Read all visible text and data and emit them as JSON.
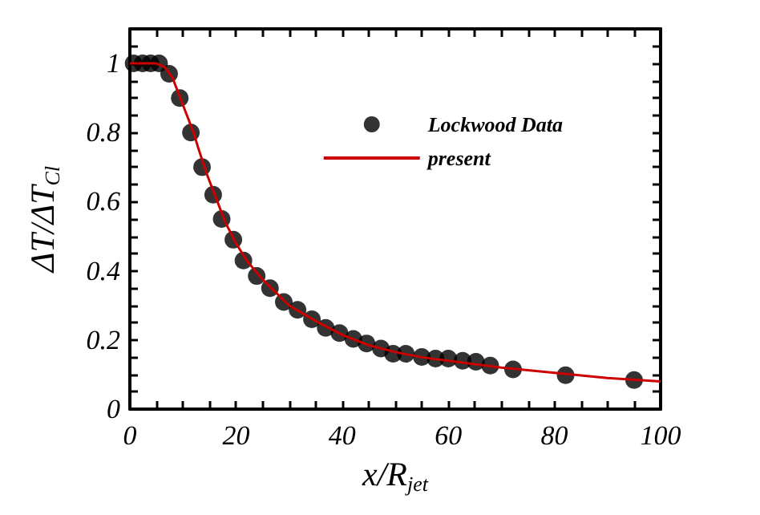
{
  "chart_data": {
    "type": "scatter",
    "xlabel": "x/R$_{jet}$",
    "ylabel": "ΔT/ΔT$_{Cl}$",
    "xlim": [
      0,
      100
    ],
    "xticks": [
      0,
      {
        "value": 5,
        "label": null
      },
      {
        "value": 10,
        "label": null
      },
      {
        "value": 15,
        "label": null
      },
      20,
      {
        "value": 25,
        "label": null
      },
      {
        "value": 30,
        "label": null
      },
      {
        "value": 35,
        "label": null
      },
      40,
      {
        "value": 45,
        "label": null
      },
      {
        "value": 50,
        "label": null
      },
      {
        "value": 55,
        "label": null
      },
      60,
      {
        "value": 65,
        "label": null
      },
      {
        "value": 70,
        "label": null
      },
      {
        "value": 75,
        "label": null
      },
      80,
      {
        "value": 85,
        "label": null
      },
      {
        "value": 90,
        "label": null
      },
      {
        "value": 95,
        "label": null
      },
      100
    ],
    "ylim": [
      0,
      1.1
    ],
    "yticks": [
      0,
      {
        "value": 0.05,
        "label": null
      },
      {
        "value": 0.1,
        "label": null
      },
      {
        "value": 0.15,
        "label": null
      },
      0.2,
      {
        "value": 0.25,
        "label": null
      },
      {
        "value": 0.3,
        "label": null
      },
      {
        "value": 0.35,
        "label": null
      },
      0.4,
      {
        "value": 0.45,
        "label": null
      },
      {
        "value": 0.5,
        "label": null
      },
      {
        "value": 0.55,
        "label": null
      },
      0.6,
      {
        "value": 0.65,
        "label": null
      },
      {
        "value": 0.7,
        "label": null
      },
      {
        "value": 0.75,
        "label": null
      },
      0.8,
      {
        "value": 0.85,
        "label": null
      },
      {
        "value": 0.9,
        "label": null
      },
      {
        "value": 0.95,
        "label": null
      },
      1,
      {
        "value": 1.05,
        "label": null
      }
    ],
    "grid": false,
    "legend": "top right",
    "series": [
      {
        "name": "Lockwood Data",
        "marker": "circle",
        "color": "#000000",
        "x": [
          0.7,
          2.4,
          3.9,
          5.5,
          7.4,
          9.4,
          11.5,
          13.6,
          15.7,
          17.3,
          19.5,
          21.4,
          23.9,
          26.4,
          29,
          31.6,
          34.3,
          36.9,
          39.5,
          42.1,
          44.6,
          47.3,
          49.6,
          52,
          55,
          57.6,
          60,
          62.7,
          65.2,
          67.9,
          72.2,
          82.1,
          95
        ],
        "values": [
          1,
          1,
          1,
          1,
          0.97,
          0.9,
          0.8,
          0.7,
          0.62,
          0.55,
          0.49,
          0.43,
          0.385,
          0.35,
          0.31,
          0.287,
          0.26,
          0.235,
          0.22,
          0.203,
          0.19,
          0.175,
          0.16,
          0.16,
          0.151,
          0.146,
          0.146,
          0.14,
          0.137,
          0.126,
          0.115,
          0.098,
          0.084
        ]
      },
      {
        "name": "present",
        "type": "line",
        "marker": "none",
        "line_style": "solid",
        "color": "#cc0000",
        "x": [
          0,
          5,
          6.5,
          8,
          9.5,
          11,
          12,
          13,
          14.5,
          16.5,
          18,
          20,
          22,
          25,
          30,
          35,
          40,
          45,
          50,
          55,
          60,
          70,
          80,
          90,
          100
        ],
        "values": [
          1,
          1,
          0.99,
          0.96,
          0.9,
          0.84,
          0.8,
          0.75,
          0.68,
          0.6,
          0.54,
          0.48,
          0.43,
          0.375,
          0.3,
          0.255,
          0.215,
          0.185,
          0.165,
          0.15,
          0.14,
          0.12,
          0.105,
          0.09,
          0.08
        ]
      }
    ]
  }
}
